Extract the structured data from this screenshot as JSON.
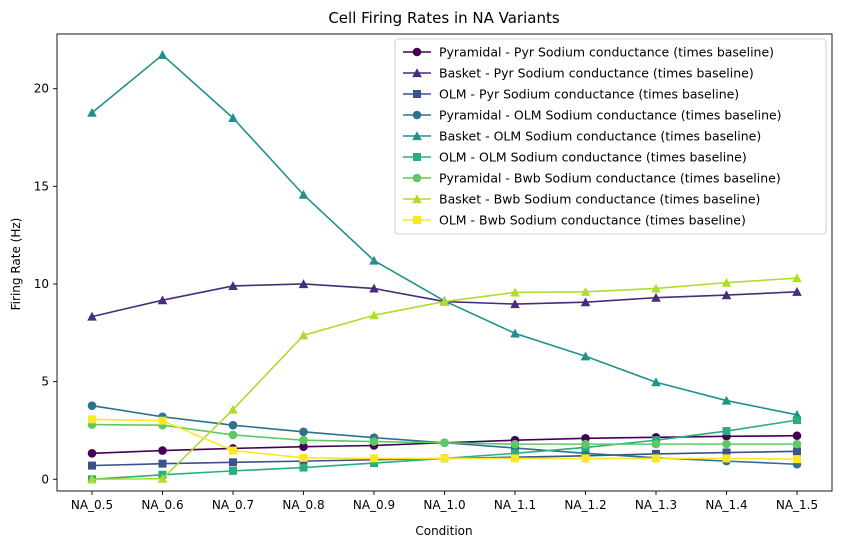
{
  "chart_data": {
    "type": "line",
    "title": "Cell Firing Rates in NA Variants",
    "xlabel": "Condition",
    "ylabel": "Firing Rate (Hz)",
    "categories": [
      "NA_0.5",
      "NA_0.6",
      "NA_0.7",
      "NA_0.8",
      "NA_0.9",
      "NA_1.0",
      "NA_1.1",
      "NA_1.2",
      "NA_1.3",
      "NA_1.4",
      "NA_1.5"
    ],
    "ylim": [
      -0.6,
      22.8
    ],
    "yticks": [
      0,
      5,
      10,
      15,
      20
    ],
    "grid": false,
    "legend_position": "top-right",
    "series": [
      {
        "name": "Pyramidal - Pyr Sodium conductance (times baseline)",
        "color": "#440154",
        "marker": "circle",
        "values": [
          1.33,
          1.47,
          1.58,
          1.67,
          1.73,
          1.87,
          2.0,
          2.1,
          2.15,
          2.2,
          2.23
        ]
      },
      {
        "name": "Basket - Pyr Sodium conductance (times baseline)",
        "color": "#472d7b",
        "marker": "triangle",
        "values": [
          8.33,
          9.17,
          9.9,
          10.0,
          9.77,
          9.1,
          8.97,
          9.07,
          9.3,
          9.43,
          9.6
        ]
      },
      {
        "name": "OLM - Pyr Sodium conductance (times baseline)",
        "color": "#3b528b",
        "marker": "square",
        "values": [
          0.7,
          0.8,
          0.87,
          0.93,
          1.0,
          1.07,
          1.13,
          1.2,
          1.3,
          1.37,
          1.43
        ]
      },
      {
        "name": "Pyramidal - OLM Sodium conductance (times baseline)",
        "color": "#2c728e",
        "marker": "circle",
        "values": [
          3.77,
          3.2,
          2.77,
          2.43,
          2.13,
          1.87,
          1.6,
          1.33,
          1.1,
          0.93,
          0.77
        ]
      },
      {
        "name": "Basket - OLM Sodium conductance (times baseline)",
        "color": "#21918c",
        "marker": "triangle",
        "values": [
          18.77,
          21.73,
          18.5,
          14.57,
          11.2,
          9.13,
          7.47,
          6.3,
          4.97,
          4.03,
          3.3
        ]
      },
      {
        "name": "OLM - OLM Sodium conductance (times baseline)",
        "color": "#28ae80",
        "marker": "square",
        "values": [
          0.0,
          0.23,
          0.43,
          0.6,
          0.83,
          1.07,
          1.33,
          1.63,
          2.0,
          2.47,
          3.03
        ]
      },
      {
        "name": "Pyramidal - Bwb Sodium conductance (times baseline)",
        "color": "#5ec962",
        "marker": "circle",
        "values": [
          2.8,
          2.77,
          2.27,
          2.0,
          1.93,
          1.87,
          1.8,
          1.8,
          1.8,
          1.8,
          1.8
        ]
      },
      {
        "name": "Basket - Bwb Sodium conductance (times baseline)",
        "color": "#addc30",
        "marker": "triangle",
        "values": [
          0.0,
          0.03,
          3.57,
          7.37,
          8.4,
          9.1,
          9.57,
          9.6,
          9.77,
          10.07,
          10.3
        ]
      },
      {
        "name": "OLM - Bwb Sodium conductance (times baseline)",
        "color": "#fde725",
        "marker": "square",
        "values": [
          3.07,
          3.0,
          1.47,
          1.1,
          1.07,
          1.07,
          1.07,
          1.07,
          1.07,
          1.07,
          1.03
        ]
      }
    ]
  }
}
